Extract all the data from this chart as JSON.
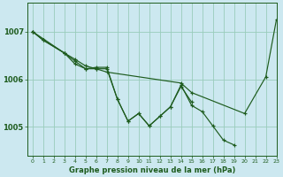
{
  "title": "Graphe pression niveau de la mer (hPa)",
  "bg_color": "#cce8f0",
  "grid_color": "#99ccbb",
  "line_color": "#1e5c1e",
  "ylim": [
    1004.4,
    1007.6
  ],
  "xlim": [
    -0.5,
    23
  ],
  "yticks": [
    1005,
    1006,
    1007
  ],
  "xticks": [
    0,
    1,
    2,
    3,
    4,
    5,
    6,
    7,
    8,
    9,
    10,
    11,
    12,
    13,
    14,
    15,
    16,
    17,
    18,
    19,
    20,
    21,
    22,
    23
  ],
  "series": [
    {
      "x": [
        0,
        1,
        3,
        4,
        5,
        6,
        7,
        14,
        15,
        20,
        22,
        23
      ],
      "y": [
        1007.0,
        1006.82,
        1006.55,
        1006.42,
        1006.28,
        1006.22,
        1006.15,
        1005.92,
        1005.72,
        1005.28,
        1006.05,
        1007.25
      ]
    },
    {
      "x": [
        0,
        3,
        4,
        5,
        6,
        7,
        8,
        9,
        10,
        11,
        12,
        13,
        14,
        15,
        16,
        17,
        18,
        19
      ],
      "y": [
        1007.0,
        1006.55,
        1006.38,
        1006.22,
        1006.22,
        1006.22,
        1005.58,
        1005.12,
        1005.28,
        1005.02,
        1005.22,
        1005.42,
        1005.88,
        1005.45,
        1005.32,
        1005.02,
        1004.72,
        1004.62
      ]
    },
    {
      "x": [
        0,
        1,
        3,
        4,
        5,
        6,
        7,
        8,
        9,
        10,
        11,
        12,
        13,
        14,
        15
      ],
      "y": [
        1007.0,
        1006.82,
        1006.55,
        1006.32,
        1006.22,
        1006.25,
        1006.25,
        1005.58,
        1005.12,
        1005.28,
        1005.02,
        1005.22,
        1005.42,
        1005.85,
        1005.52
      ]
    }
  ]
}
